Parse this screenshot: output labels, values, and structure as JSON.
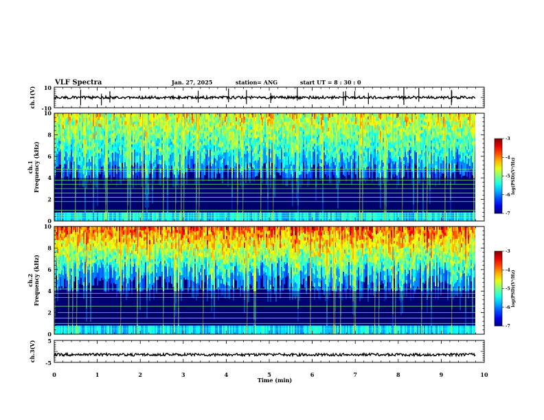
{
  "header": {
    "title": "VLF Spectra",
    "date": "Jan. 27, 2025",
    "station": "station= ANG",
    "start": "start  UT  =   8  : 30 : 0"
  },
  "chart_data": [
    {
      "type": "line",
      "name": "ch1-waveform",
      "ylabel": "ch.1(V)",
      "ylim": [
        -10,
        10
      ],
      "yticks": [
        "10",
        "-10"
      ],
      "baseline": 0,
      "xlim": [
        0,
        10
      ]
    },
    {
      "type": "heatmap",
      "name": "ch1-spectrogram",
      "ylabel_line1": "ch.1",
      "ylabel_line2": "Frequency  (kHz)",
      "ylim": [
        0,
        10
      ],
      "yticks": [
        "0",
        "2",
        "4",
        "6",
        "8",
        "10"
      ],
      "xlim": [
        0,
        9.8
      ],
      "colorbar": {
        "label": "log(PSD)(V²/Hz)",
        "range": [
          -7,
          -3
        ],
        "ticks": [
          "-7",
          "-6",
          "-5",
          "-4",
          "-3"
        ]
      },
      "band_lines_khz": [
        0.3,
        0.5,
        0.7,
        1.0,
        1.8,
        2.2,
        2.6,
        3.0,
        3.4,
        3.8,
        4.6,
        4.8
      ]
    },
    {
      "type": "heatmap",
      "name": "ch2-spectrogram",
      "ylabel_line1": "ch.2",
      "ylabel_line2": "Frequency  (kHz)",
      "ylim": [
        0,
        10
      ],
      "yticks": [
        "0",
        "2",
        "4",
        "6",
        "8",
        "10"
      ],
      "xlim": [
        0,
        9.8
      ],
      "colorbar": {
        "label": "log(PSD)(V²/Hz)",
        "range": [
          -7,
          -3
        ],
        "ticks": [
          "-7",
          "-6",
          "-5",
          "-4",
          "-3"
        ]
      },
      "band_lines_khz": [
        0.5,
        1.0,
        1.5,
        2.0,
        2.6,
        3.4,
        3.8,
        4.2
      ]
    },
    {
      "type": "line",
      "name": "ch3-waveform",
      "ylabel": "ch.3(V)",
      "ylim": [
        -5,
        5
      ],
      "yticks": [
        "5",
        "-5"
      ],
      "baseline": -1.5,
      "xlim": [
        0,
        9.8
      ]
    }
  ],
  "xaxis": {
    "label": "Time  (min)",
    "ticks": [
      "0",
      "1",
      "2",
      "3",
      "4",
      "5",
      "6",
      "7",
      "8",
      "9",
      "10"
    ],
    "range": [
      0,
      10
    ]
  }
}
